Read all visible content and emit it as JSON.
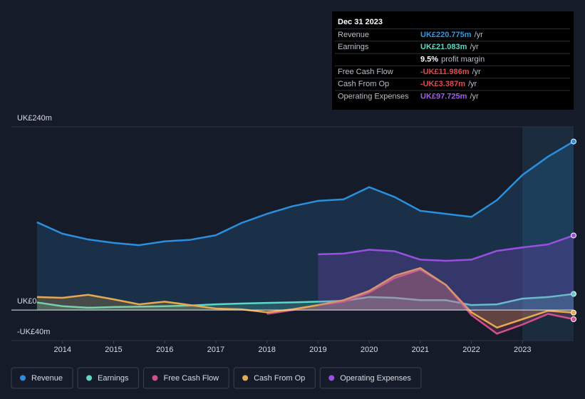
{
  "chart_data": {
    "type": "line",
    "x": [
      2013.5,
      2014,
      2014.5,
      2015,
      2015.5,
      2016,
      2016.5,
      2017,
      2017.5,
      2018,
      2018.5,
      2019,
      2019.5,
      2020,
      2020.5,
      2021,
      2021.5,
      2022,
      2022.5,
      2023,
      2023.5,
      2024
    ],
    "xlim": [
      2013,
      2024
    ],
    "xticks": [
      2014,
      2015,
      2016,
      2017,
      2018,
      2019,
      2020,
      2021,
      2022,
      2023
    ],
    "ylim": [
      -40,
      240
    ],
    "yticks": [
      {
        "value": -40,
        "label": "-UK£40m"
      },
      {
        "value": 0,
        "label": "UK£0"
      },
      {
        "value": 240,
        "label": "UK£240m"
      }
    ],
    "series": [
      {
        "name": "Revenue",
        "color": "#2b8fe0",
        "values": [
          115,
          100,
          92.5,
          88,
          85,
          90,
          92,
          98,
          114,
          126,
          136,
          143,
          145,
          161,
          148,
          130,
          126,
          122,
          144,
          177,
          201,
          220.775
        ]
      },
      {
        "name": "Earnings",
        "color": "#5cd9c5",
        "values": [
          10,
          5,
          3,
          4,
          4.5,
          5,
          6,
          7.5,
          8.5,
          9.3,
          10,
          11,
          12,
          17,
          16,
          13,
          13,
          6.5,
          7.5,
          15,
          17,
          21.083
        ]
      },
      {
        "name": "Free Cash Flow",
        "color": "#d2508b",
        "values": [
          null,
          null,
          null,
          null,
          null,
          null,
          null,
          null,
          null,
          -5,
          0,
          6.5,
          11,
          23,
          42,
          53,
          33,
          -6.5,
          -31,
          -19,
          -5,
          -11.986
        ]
      },
      {
        "name": "Cash From Op",
        "color": "#e6a94f",
        "values": [
          17,
          16,
          20,
          14,
          7.5,
          11,
          6.5,
          2,
          1,
          -3,
          1,
          6.5,
          13,
          25,
          45,
          55,
          33,
          -3,
          -23,
          -12,
          -1,
          -3.387
        ]
      },
      {
        "name": "Operating Expenses",
        "color": "#9b4fe0",
        "values": [
          null,
          null,
          null,
          null,
          null,
          null,
          null,
          null,
          null,
          null,
          null,
          73,
          74,
          79,
          77,
          66,
          64.5,
          66,
          77.5,
          82,
          86,
          97.725
        ]
      }
    ],
    "tooltip": {
      "date": "Dec 31 2023",
      "rows": [
        {
          "label": "Revenue",
          "value": "UK£220.775m",
          "unit": "/yr",
          "color": "#2b9be8"
        },
        {
          "label": "Earnings",
          "value": "UK£21.083m",
          "unit": "/yr",
          "color": "#5cd9c5"
        },
        {
          "label": "9.5%",
          "value": "profit margin"
        },
        {
          "label": "Free Cash Flow",
          "value": "-UK£11.986m",
          "unit": "/yr",
          "color": "#e5484d"
        },
        {
          "label": "Cash From Op",
          "value": "-UK£3.387m",
          "unit": "/yr",
          "color": "#e5484d"
        },
        {
          "label": "Operating Expenses",
          "value": "UK£97.725m",
          "unit": "/yr",
          "color": "#a35cf0"
        }
      ]
    }
  }
}
